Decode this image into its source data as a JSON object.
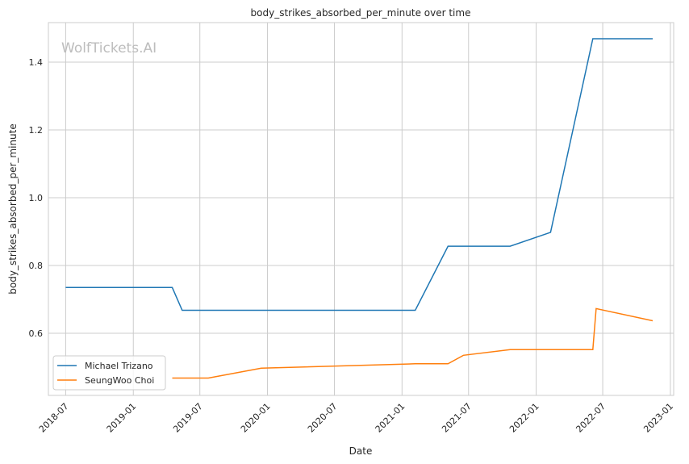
{
  "chart_data": {
    "type": "line",
    "title": "body_strikes_absorbed_per_minute over time",
    "xlabel": "Date",
    "ylabel": "body_strikes_absorbed_per_minute",
    "watermark": "WolfTickets.AI",
    "xlim": [
      "2018-05-15",
      "2023-01-10"
    ],
    "ylim": [
      0.4167,
      1.5167
    ],
    "grid": true,
    "legend_position": "lower-left",
    "x_ticks": [
      "2018-07",
      "2019-01",
      "2019-07",
      "2020-01",
      "2020-07",
      "2021-01",
      "2021-07",
      "2022-01",
      "2022-07",
      "2023-01"
    ],
    "y_ticks": [
      "0.6",
      "0.8",
      "1.0",
      "1.2",
      "1.4"
    ],
    "series": [
      {
        "name": "Michael Trizano",
        "color": "#1f77b4",
        "x": [
          "2018-07-01",
          "2019-04-17",
          "2019-05-14",
          "2021-02-06",
          "2021-05-06",
          "2021-10-22",
          "2022-02-09",
          "2022-06-04",
          "2022-11-14"
        ],
        "y": [
          0.735,
          0.735,
          0.668,
          0.668,
          0.857,
          0.857,
          0.898,
          1.469,
          1.469
        ]
      },
      {
        "name": "SeungWoo Choi",
        "color": "#ff7f0e",
        "x": [
          "2019-04-17",
          "2019-07-24",
          "2019-12-15",
          "2021-02-06",
          "2021-05-06",
          "2021-06-17",
          "2021-10-22",
          "2022-06-04",
          "2022-06-13",
          "2022-11-14"
        ],
        "y": [
          0.468,
          0.468,
          0.497,
          0.51,
          0.51,
          0.535,
          0.552,
          0.552,
          0.673,
          0.637
        ]
      }
    ]
  }
}
